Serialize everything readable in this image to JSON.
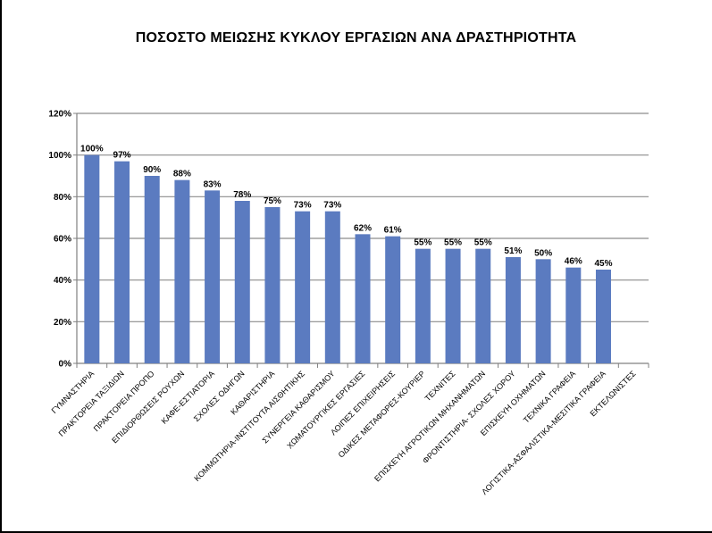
{
  "chart_data": {
    "type": "bar",
    "title": "ΠΟΣΟΣΤΟ ΜΕΙΩΣΗΣ ΚΥΚΛΟΥ ΕΡΓΑΣΙΩΝ ΑΝΑ ΔΡΑΣΤΗΡΙΟΤΗΤΑ",
    "xlabel": "",
    "ylabel": "",
    "ylim": [
      0,
      120
    ],
    "yticks": [
      0,
      20,
      40,
      60,
      80,
      100,
      120
    ],
    "ytick_labels": [
      "0%",
      "20%",
      "40%",
      "60%",
      "80%",
      "100%",
      "120%"
    ],
    "grid": true,
    "bar_color": "#5B7BC0",
    "categories": [
      "ΓΥΜΝΑΣΤΗΡΙΑ",
      "ΠΡΑΚΤΟΡΕΙΑ ΤΑΞΙΔΙΩΝ",
      "ΠΡΑΚΤΟΡΕΙΑ ΠΡΟΠΟ",
      "ΕΠΙΔΙΟΡΘΩΣΕΙΣ ΡΟΥΧΩΝ",
      "ΚΑΦΕ-ΕΣΤΙΑΤΟΡΙΑ",
      "ΣΧΟΛΕΣ ΟΔΗΓΩΝ",
      "ΚΑΘΑΡΙΣΤΗΡΙΑ",
      "ΚΟΜΜΩΤΗΡΙΑ-ΙΝΣΤΙΤΟΥΤΑ ΑΙΣΘΗΤΙΚΗΣ",
      "ΣΥΝΕΡΓΕΙΑ ΚΑΘΑΡΙΣΜΟΥ",
      "ΧΩΜΑΤΟΥΡΓΙΚΕΣ ΕΡΓΑΣΙΕΣ",
      "ΛΟΙΠΕΣ ΕΠΙΧΕΙΡΗΣΕΙΣ",
      "ΟΔΙΚΕΣ ΜΕΤΑΦΟΡΕΣ-ΚΟΥΡΙΕΡ",
      "ΤΕΧΝΙΤΕΣ",
      "ΕΠΙΣΚΕΥΗ ΑΓΡΟΤΙΚΩΝ ΜΗΧΑΝΗΜΑΤΩΝ",
      "ΦΡΟΝΤΙΣΤΗΡΙΑ- ΣΧΟΛΕΣ ΧΟΡΟΥ",
      "ΕΠΙΣΚΕΥΗ ΟΧΗΜΑΤΩΝ",
      "ΤΕΧΝΙΚΑ ΓΡΑΦΕΙΑ",
      "ΛΟΓΙΣΤΙΚΑ-ΑΣΦΑΛΙΣΤΙΚΑ-ΜΕΣΙΤΙΚΑ ΓΡΑΦΕΙΑ",
      "ΕΚΤΕΛΩΝΙΣΤΕΣ"
    ],
    "values": [
      100,
      97,
      90,
      88,
      83,
      78,
      75,
      73,
      73,
      62,
      61,
      55,
      55,
      55,
      51,
      50,
      46,
      45,
      null
    ],
    "data_labels": [
      "100%",
      "97%",
      "90%",
      "88%",
      "83%",
      "78%",
      "75%",
      "73%",
      "73%",
      "62%",
      "61%",
      "55%",
      "55%",
      "55%",
      "51%",
      "50%",
      "46%",
      "45%",
      ""
    ]
  }
}
